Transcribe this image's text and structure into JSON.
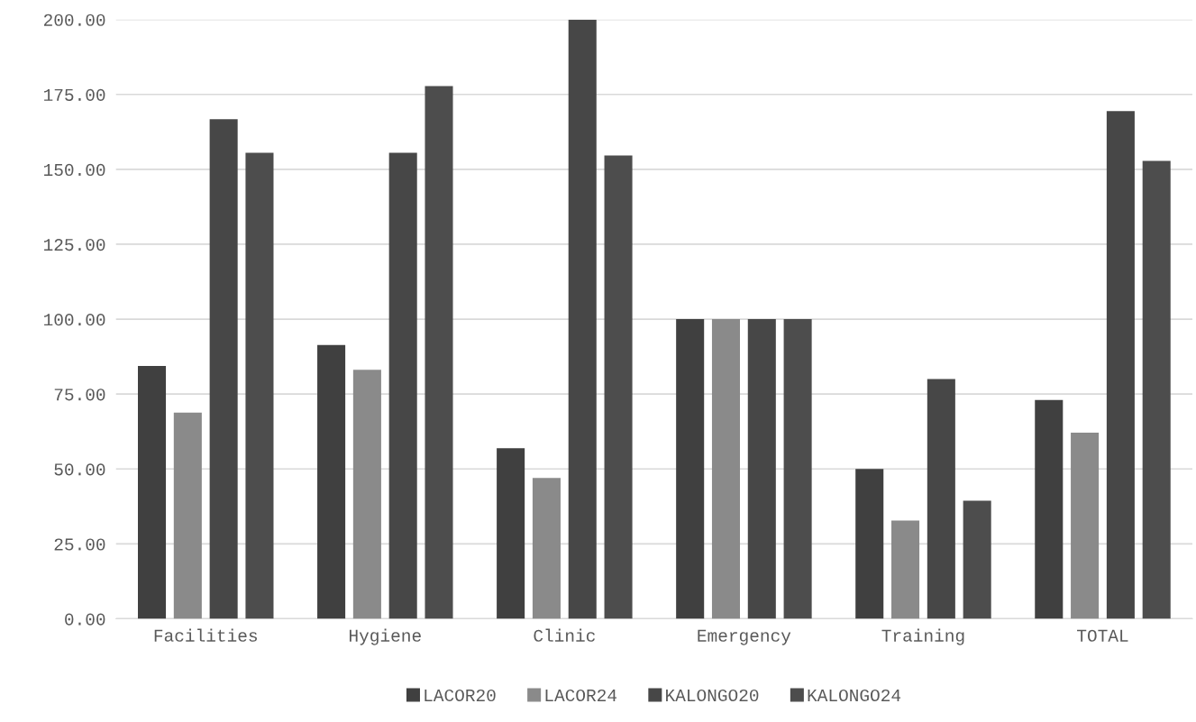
{
  "chart_data": {
    "type": "bar",
    "categories": [
      "Facilities",
      "Hygiene",
      "Clinic",
      "Emergency",
      "Training",
      "TOTAL"
    ],
    "series": [
      {
        "name": "LACOR20",
        "color": "#404040",
        "values": [
          84.4,
          91.4,
          56.9,
          100,
          50,
          73.0
        ]
      },
      {
        "name": "LACOR24",
        "color": "#8a8a8a",
        "values": [
          68.8,
          83.1,
          47.0,
          100,
          32.8,
          62.1
        ]
      },
      {
        "name": "KALONGO20",
        "color": "#474747",
        "values": [
          166.7,
          155.5,
          200,
          100,
          80,
          169.4
        ]
      },
      {
        "name": "KALONGO24",
        "color": "#4d4d4d",
        "values": [
          155.5,
          177.8,
          154.6,
          100,
          39.4,
          152.8
        ]
      }
    ],
    "ylim": [
      0,
      200
    ],
    "yticks": [
      {
        "value": 0,
        "label": "0.00"
      },
      {
        "value": 25,
        "label": "25.00"
      },
      {
        "value": 50,
        "label": "50.00"
      },
      {
        "value": 75,
        "label": "75.00"
      },
      {
        "value": 100,
        "label": "100.00"
      },
      {
        "value": 125,
        "label": "125.00"
      },
      {
        "value": 150,
        "label": "150.00"
      },
      {
        "value": 175,
        "label": "175.00"
      },
      {
        "value": 200,
        "label": "200.00"
      }
    ],
    "grid": "y",
    "legend": "bottom"
  }
}
